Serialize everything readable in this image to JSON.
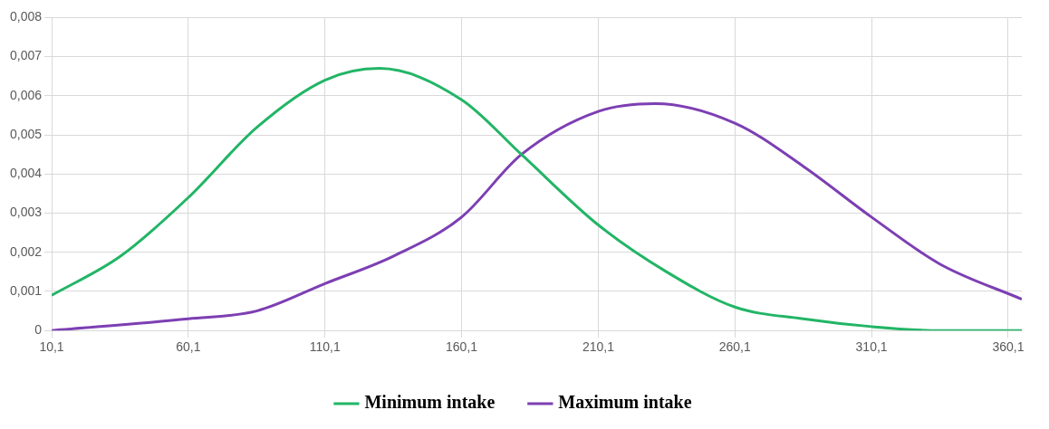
{
  "chart_data": {
    "type": "line",
    "xlim": [
      10.1,
      365.1
    ],
    "xticks": [
      {
        "value": 10.1,
        "label": "10,1"
      },
      {
        "value": 60.1,
        "label": "60,1"
      },
      {
        "value": 110.1,
        "label": "110,1"
      },
      {
        "value": 160.1,
        "label": "160,1"
      },
      {
        "value": 210.1,
        "label": "210,1"
      },
      {
        "value": 260.1,
        "label": "260,1"
      },
      {
        "value": 310.1,
        "label": "310,1"
      },
      {
        "value": 360.1,
        "label": "360,1"
      }
    ],
    "ylim": [
      0,
      0.008
    ],
    "yticks": [
      0,
      {
        "value": 0.001,
        "label": "0,001"
      },
      {
        "value": 0.002,
        "label": "0,002"
      },
      {
        "value": 0.003,
        "label": "0,003"
      },
      {
        "value": 0.004,
        "label": "0,004"
      },
      {
        "value": 0.005,
        "label": "0,005"
      },
      {
        "value": 0.006,
        "label": "0,006"
      },
      {
        "value": 0.007,
        "label": "0,007"
      },
      {
        "value": 0.008,
        "label": "0,008"
      }
    ],
    "grid": true,
    "legend": "bottom",
    "marker": "none",
    "line_style": "solid",
    "series": [
      {
        "name": "Minimum intake",
        "color": "#22b566",
        "x": [
          10.1,
          35.3,
          60.1,
          85.3,
          110.1,
          130,
          160.1,
          182,
          210.1,
          235.1,
          260.1,
          285.1,
          310.1,
          335,
          365.1
        ],
        "values": [
          0.0009,
          0.0019,
          0.0034,
          0.0052,
          0.0064,
          0.0067,
          0.0059,
          0.0045,
          0.0027,
          0.0015,
          0.0006,
          0.0003,
          0.0001,
          0,
          0
        ]
      },
      {
        "name": "Maximum intake",
        "color": "#7d3fb3",
        "x": [
          10.1,
          60.1,
          85.1,
          110.1,
          135.1,
          160.1,
          182,
          210.1,
          231,
          260.1,
          285.1,
          310.1,
          335.1,
          365.1
        ],
        "values": [
          0,
          0.0003,
          0.0005,
          0.0012,
          0.0019,
          0.0029,
          0.0045,
          0.0056,
          0.0058,
          0.0053,
          0.0042,
          0.0029,
          0.0017,
          0.0008
        ]
      }
    ]
  }
}
